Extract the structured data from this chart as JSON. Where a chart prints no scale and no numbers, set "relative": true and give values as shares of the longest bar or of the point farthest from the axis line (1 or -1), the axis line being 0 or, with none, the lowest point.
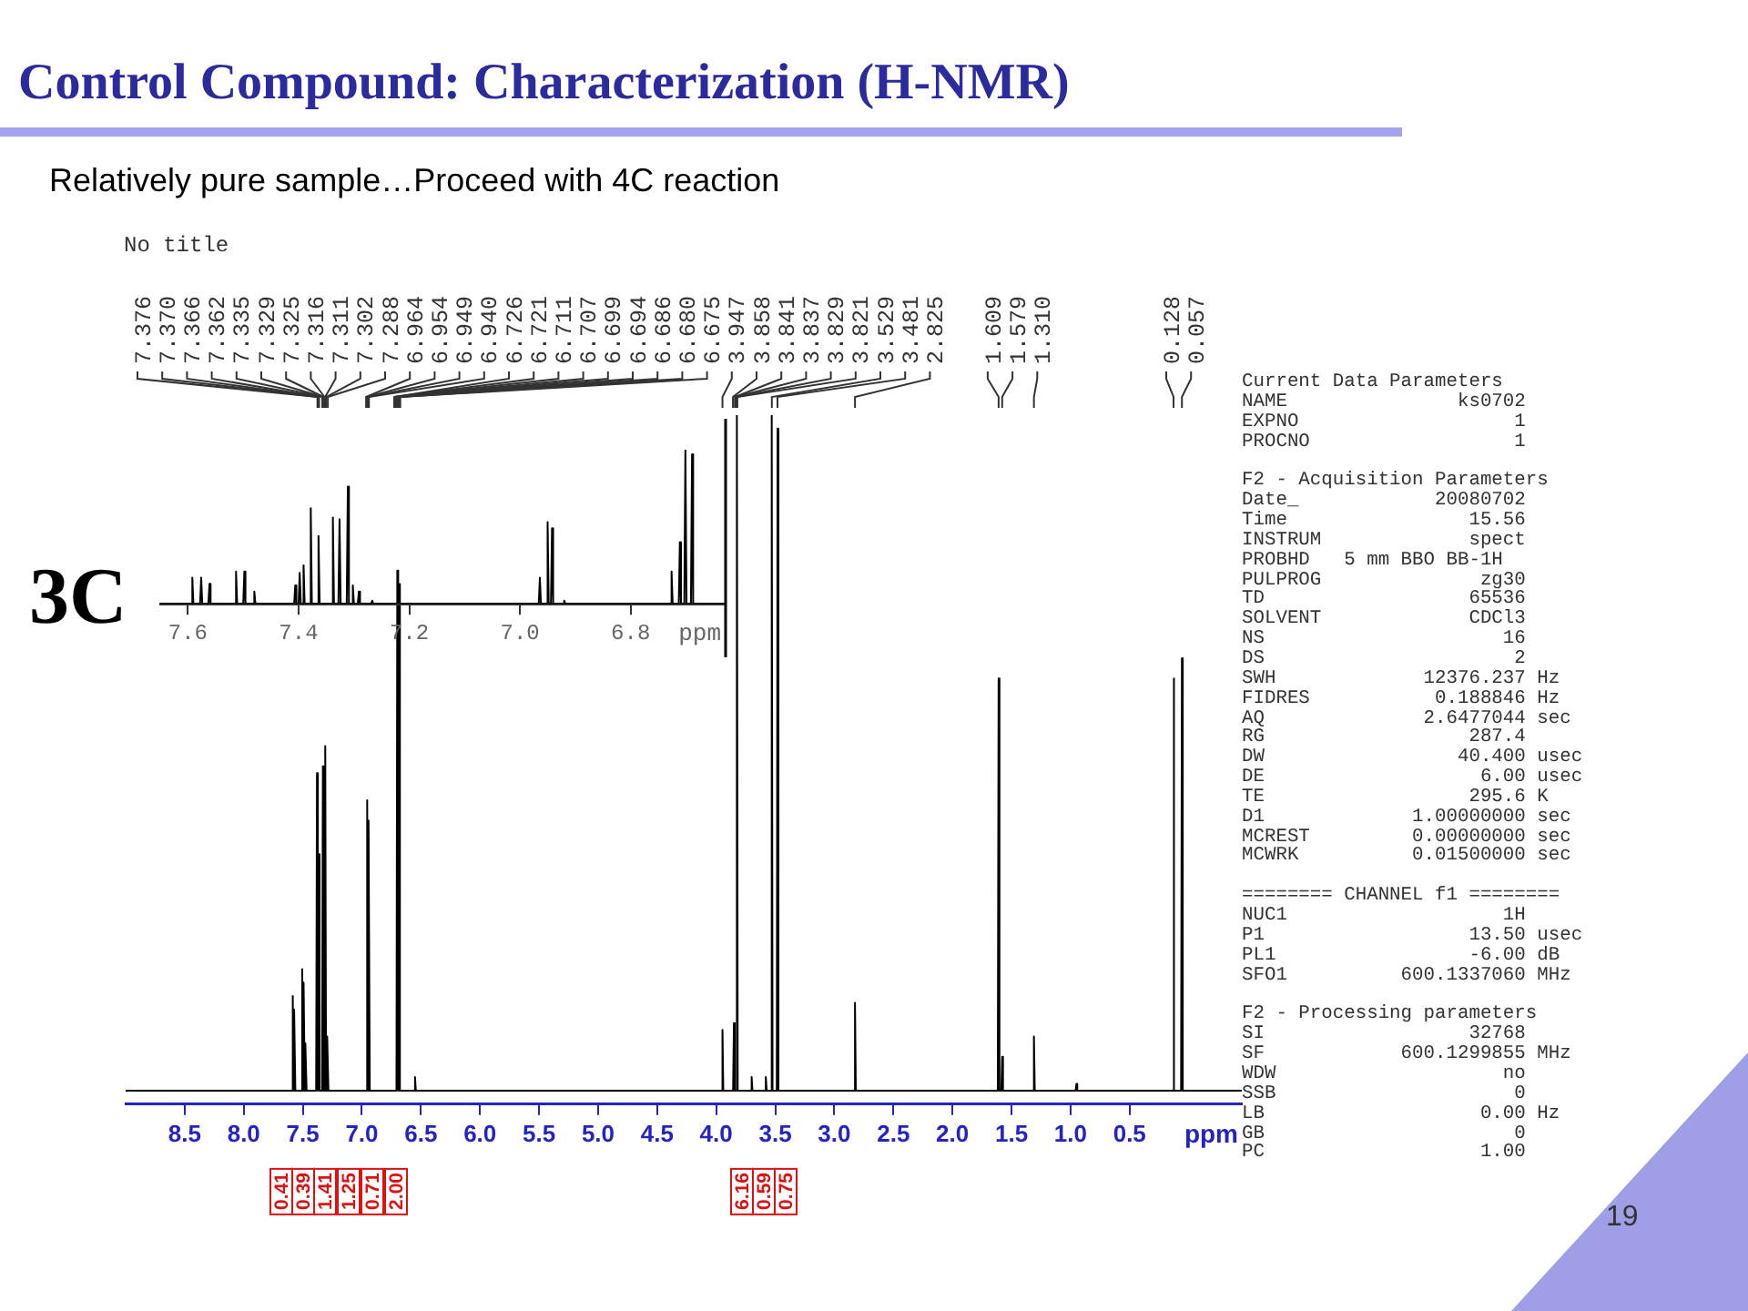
{
  "chart_data": [
    {
      "type": "line",
      "title": "Control Compound: Characterization (H-NMR)",
      "subtitle": "Relatively pure sample…Proceed with 4C reaction",
      "xlabel": "ppm",
      "relative": true,
      "grid": false,
      "legend": false,
      "marker": "none",
      "line_style": "solid",
      "xlim": [
        9.0,
        -0.45
      ],
      "xticks": [
        8.5,
        {
          "value": 8,
          "label": "8.0"
        },
        7.5,
        {
          "value": 7,
          "label": "7.0"
        },
        6.5,
        {
          "value": 6,
          "label": "6.0"
        },
        5.5,
        {
          "value": 5,
          "label": "5.0"
        },
        4.5,
        {
          "value": 4,
          "label": "4.0"
        },
        3.5,
        {
          "value": 3,
          "label": "3.0"
        },
        2.5,
        {
          "value": 2,
          "label": "2.0"
        },
        1.5,
        {
          "value": 1,
          "label": "1.0"
        },
        0.5
      ],
      "series": [
        {
          "color": "#000000",
          "x": [
            9.0,
            7.592,
            7.585,
            7.578,
            7.577,
            7.57,
            7.563,
            7.512,
            7.505,
            7.498,
            7.497,
            7.49,
            7.483,
            7.482,
            7.475,
            7.468,
            7.387,
            7.38,
            7.373,
            7.372,
            7.365,
            7.358,
            7.337,
            7.33,
            7.323,
            7.317,
            7.31,
            7.303,
            7.297,
            7.29,
            7.283,
            6.962,
            6.955,
            6.948,
            6.947,
            6.94,
            6.933,
            6.707,
            6.7,
            6.693,
            6.692,
            6.685,
            6.678,
            6.557,
            6.55,
            6.543,
            3.954,
            3.947,
            3.94,
            3.857,
            3.85,
            3.843,
            3.832,
            3.825,
            3.818,
            3.707,
            3.7,
            3.693,
            3.587,
            3.58,
            3.573,
            3.537,
            3.53,
            3.523,
            3.487,
            3.48,
            3.473,
            2.832,
            2.825,
            2.818,
            1.616,
            1.609,
            1.602,
            1.586,
            1.579,
            1.572,
            1.317,
            1.31,
            1.303,
            0.957,
            0.95,
            0.943,
            0.135,
            0.128,
            0.121,
            0.064,
            0.057,
            0.05,
            -0.45
          ],
          "values": [
            0,
            0,
            0.14,
            0,
            0,
            0.12,
            0,
            0,
            0.18,
            0,
            0,
            0.16,
            0,
            0,
            0.07,
            0,
            0,
            0.47,
            0,
            0,
            0.35,
            0,
            0,
            0.48,
            0,
            0,
            0.51,
            0,
            0,
            0.08,
            0,
            0,
            0.43,
            0,
            0,
            0.4,
            0,
            0,
            0.77,
            0,
            0,
            0.75,
            0,
            0,
            0.02,
            0,
            0,
            0.09,
            0,
            0,
            0.1,
            0,
            0,
            1,
            0,
            0,
            0.02,
            0,
            0,
            0.02,
            0,
            0,
            1,
            0,
            0,
            0.98,
            0,
            0,
            0.13,
            0,
            0,
            0.61,
            0,
            0,
            0.05,
            0,
            0,
            0.08,
            0,
            0,
            0.01,
            0,
            0,
            0.61,
            0,
            0,
            0.64,
            0,
            0
          ]
        }
      ],
      "annotations": [
        "No title",
        "3C",
        "19",
        "0.41",
        "0.39",
        "1.41",
        "1.25",
        "0.71",
        "2.00",
        "6.16",
        "0.59",
        "0.75",
        {
          "text": "7.376",
          "x": 7.376
        },
        {
          "text": "7.370",
          "x": 7.37
        },
        {
          "text": "7.366",
          "x": 7.366
        },
        {
          "text": "7.362",
          "x": 7.362
        },
        {
          "text": "7.335",
          "x": 7.335
        },
        {
          "text": "7.329",
          "x": 7.329
        },
        {
          "text": "7.325",
          "x": 7.325
        },
        {
          "text": "7.316",
          "x": 7.316
        },
        {
          "text": "7.311",
          "x": 7.311
        },
        {
          "text": "7.302",
          "x": 7.302
        },
        {
          "text": "7.288",
          "x": 7.288
        },
        {
          "text": "6.964",
          "x": 6.964
        },
        {
          "text": "6.954",
          "x": 6.954
        },
        {
          "text": "6.949",
          "x": 6.949
        },
        {
          "text": "6.940",
          "x": 6.94
        },
        {
          "text": "6.726",
          "x": 6.726
        },
        {
          "text": "6.721",
          "x": 6.721
        },
        {
          "text": "6.711",
          "x": 6.711
        },
        {
          "text": "6.707",
          "x": 6.707
        },
        {
          "text": "6.699",
          "x": 6.699
        },
        {
          "text": "6.694",
          "x": 6.694
        },
        {
          "text": "6.686",
          "x": 6.686
        },
        {
          "text": "6.680",
          "x": 6.68
        },
        {
          "text": "6.675",
          "x": 6.675
        },
        {
          "text": "3.947",
          "x": 3.947
        },
        {
          "text": "3.858",
          "x": 3.858
        },
        {
          "text": "3.841",
          "x": 3.841
        },
        {
          "text": "3.837",
          "x": 3.837
        },
        {
          "text": "3.829",
          "x": 3.829
        },
        {
          "text": "3.821",
          "x": 3.821
        },
        {
          "text": "3.529",
          "x": 3.529
        },
        {
          "text": "3.481",
          "x": 3.481
        },
        {
          "text": "2.825",
          "x": 2.825
        },
        {
          "text": "1.609",
          "x": 1.609
        },
        {
          "text": "1.579",
          "x": 1.579
        },
        {
          "text": "1.310",
          "x": 1.31
        },
        {
          "text": "0.128",
          "x": 0.128
        },
        {
          "text": "0.057",
          "x": 0.057
        }
      ]
    },
    {
      "type": "line",
      "xlabel": "ppm",
      "relative": true,
      "grid": false,
      "legend": false,
      "marker": "none",
      "line_style": "solid",
      "xlim": [
        7.65,
        6.63
      ],
      "xticks": [
        7.6,
        7.4,
        7.2,
        {
          "value": 7,
          "label": "7.0"
        },
        6.8
      ],
      "series": [
        {
          "color": "#000000",
          "x": [
            7.65,
            7.594,
            7.592,
            7.59,
            7.578,
            7.576,
            7.574,
            7.563,
            7.561,
            7.559,
            7.515,
            7.513,
            7.511,
            7.5,
            7.498,
            7.496,
            7.482,
            7.48,
            7.478,
            7.408,
            7.406,
            7.404,
            7.4,
            7.398,
            7.396,
            7.393,
            7.391,
            7.389,
            7.38,
            7.378,
            7.376,
            7.366,
            7.364,
            7.362,
            7.34,
            7.338,
            7.336,
            7.328,
            7.326,
            7.324,
            7.313,
            7.311,
            7.309,
            7.304,
            7.302,
            7.3,
            7.293,
            7.291,
            7.289,
            7.269,
            7.267,
            7.265,
            6.966,
            6.964,
            6.962,
            6.952,
            6.95,
            6.948,
            6.944,
            6.942,
            6.94,
            6.922,
            6.92,
            6.918,
            6.728,
            6.726,
            6.724,
            6.713,
            6.711,
            6.709,
            6.703,
            6.701,
            6.699,
            6.691,
            6.689,
            6.687,
            6.63
          ],
          "values": [
            0,
            0,
            0.17,
            0,
            0,
            0.17,
            0,
            0,
            0.13,
            0,
            0,
            0.21,
            0,
            0,
            0.21,
            0,
            0,
            0.08,
            0,
            0,
            0.12,
            0,
            0,
            0.2,
            0,
            0,
            0.25,
            0,
            0,
            0.62,
            0,
            0,
            0.44,
            0,
            0,
            0.56,
            0,
            0,
            0.55,
            0,
            0,
            0.76,
            0,
            0,
            0.12,
            0,
            0,
            0.08,
            0,
            0,
            0.02,
            0,
            0,
            0.17,
            0,
            0,
            0.53,
            0,
            0,
            0.49,
            0,
            0,
            0.02,
            0,
            0,
            0.21,
            0,
            0,
            0.4,
            0,
            0,
            1,
            0,
            0,
            0.97,
            0,
            0
          ]
        }
      ]
    },
    {
      "type": "other",
      "annotations": [
        "Current Data Parameters\nNAME               ks0702\nEXPNO                   1\nPROCNO                  1",
        "F2 - Acquisition Parameters\nDate_            20080702\nTime                15.56\nINSTRUM             spect\nPROBHD   5 mm BBO BB-1H\nPULPROG              zg30\nTD                  65536\nSOLVENT             CDCl3\nNS                     16\nDS                      2\nSWH             12376.237 Hz\nFIDRES           0.188846 Hz\nAQ              2.6477044 sec\nRG                  287.4\nDW                 40.400 usec\nDE                   6.00 usec\nTE                  295.6 K\nD1             1.00000000 sec\nMCREST         0.00000000 sec\nMCWRK          0.01500000 sec",
        "======== CHANNEL f1 ========\nNUC1                   1H\nP1                  13.50 usec\nPL1                 -6.00 dB\nSFO1          600.1337060 MHz",
        "F2 - Processing parameters\nSI                  32768\nSF            600.1299855 MHz\nWDW                    no\nSSB                     0\nLB                   0.00 Hz\nGB                      0\nPC                   1.00"
      ]
    }
  ]
}
